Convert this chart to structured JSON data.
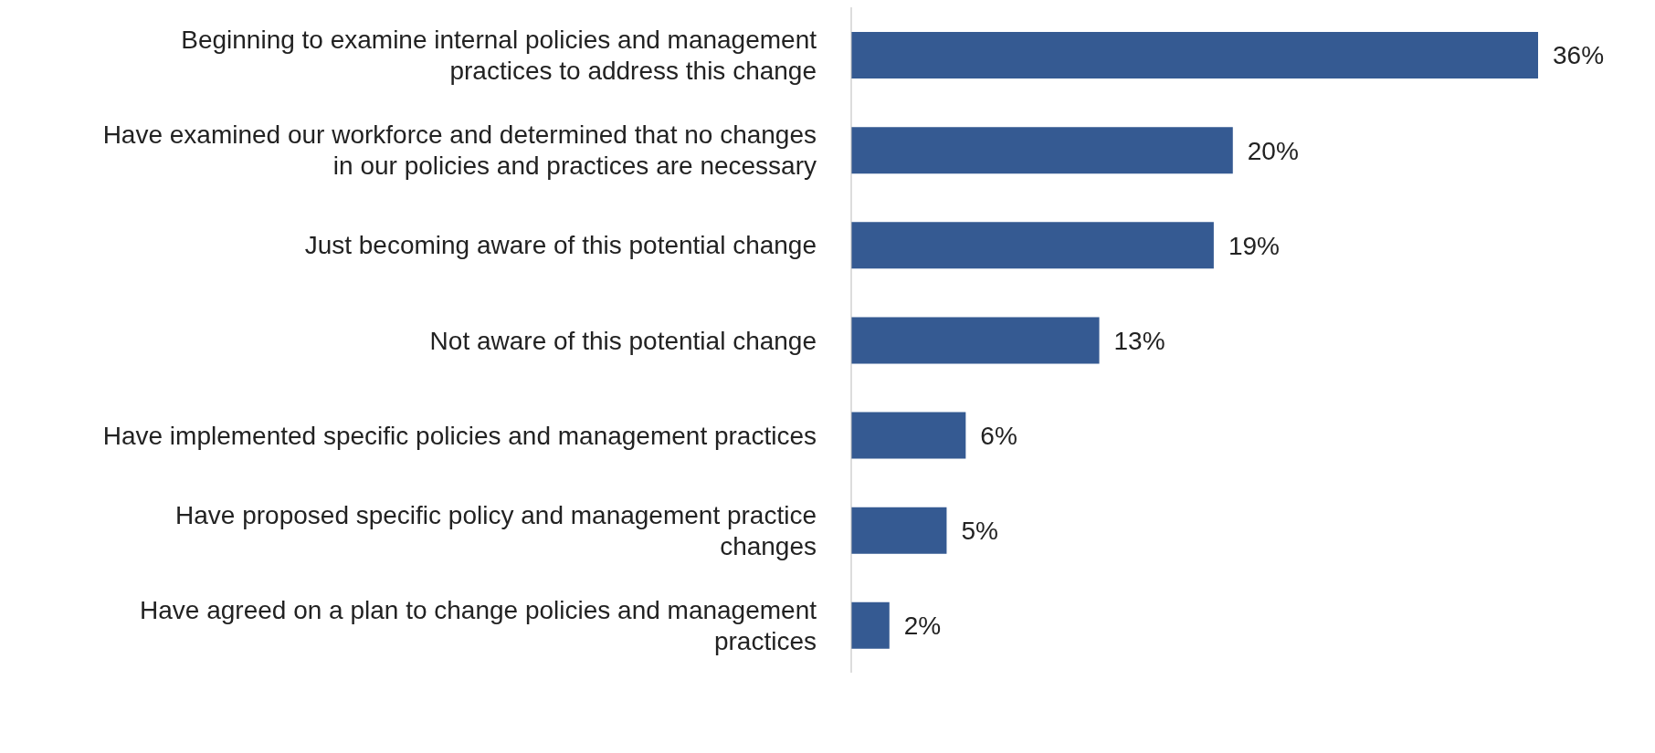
{
  "chart_data": {
    "type": "bar",
    "orientation": "horizontal",
    "categories": [
      "Beginning to examine internal policies and management practices to address this change",
      "Have examined our workforce and determined that no changes in our policies and practices are necessary",
      "Just becoming aware of this potential change",
      "Not aware of this potential change",
      "Have implemented specific policies and management practices",
      "Have proposed specific policy and management practice changes",
      "Have agreed on a plan to change policies and management practices"
    ],
    "values": [
      36,
      20,
      19,
      13,
      6,
      5,
      2
    ],
    "value_labels": [
      "36%",
      "20%",
      "19%",
      "13%",
      "6%",
      "5%",
      "2%"
    ],
    "color": "#355a92"
  }
}
